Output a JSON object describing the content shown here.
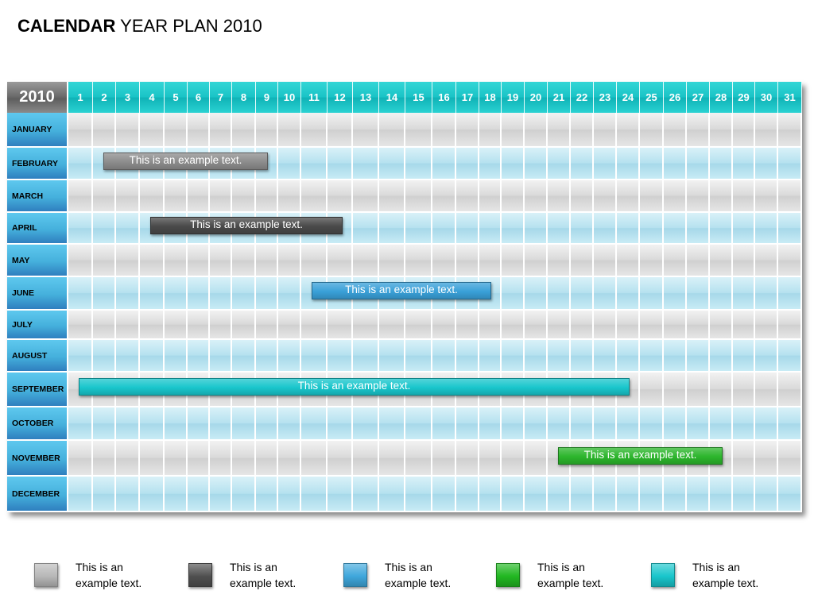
{
  "title": {
    "bold": "CALENDAR",
    "rest": " YEAR PLAN 2010"
  },
  "year": "2010",
  "days": [
    "1",
    "2",
    "3",
    "4",
    "5",
    "6",
    "7",
    "8",
    "9",
    "10",
    "11",
    "12",
    "13",
    "14",
    "15",
    "16",
    "17",
    "18",
    "19",
    "20",
    "21",
    "22",
    "23",
    "24",
    "25",
    "26",
    "27",
    "28",
    "29",
    "30",
    "31"
  ],
  "months": [
    "JANUARY",
    "FEBRUARY",
    "MARCH",
    "APRIL",
    "MAY",
    "JUNE",
    "JULY",
    "AUGUST",
    "SEPTEMBER",
    "OCTOBER",
    "NOVEMBER",
    "DECEMBER"
  ],
  "bars": [
    {
      "month": "FEBRUARY",
      "start_day": 2,
      "end_day": 9,
      "text": "This is an example text.",
      "color": "#8c8c8c"
    },
    {
      "month": "APRIL",
      "start_day": 4,
      "end_day": 12,
      "text": "This is an example text.",
      "color": "#4a4a4a"
    },
    {
      "month": "JUNE",
      "start_day": 11,
      "end_day": 18,
      "text": "This is an example text.",
      "color": "#3aa0d8"
    },
    {
      "month": "SEPTEMBER",
      "start_day": 1,
      "end_day": 24,
      "text": "This is an example text.",
      "color": "#19c6cc"
    },
    {
      "month": "NOVEMBER",
      "start_day": 21,
      "end_day": 28,
      "text": "This is an example text.",
      "color": "#2cb52c"
    }
  ],
  "legend": [
    {
      "text": "This is an example text.",
      "color": "#b8b8b8"
    },
    {
      "text": "This is an example text.",
      "color": "#505050"
    },
    {
      "text": "This is an example text.",
      "color": "#3fa7dc"
    },
    {
      "text": "This is an example text.",
      "color": "#22b822"
    },
    {
      "text": "This is an example text.",
      "color": "#19c6cc"
    }
  ]
}
